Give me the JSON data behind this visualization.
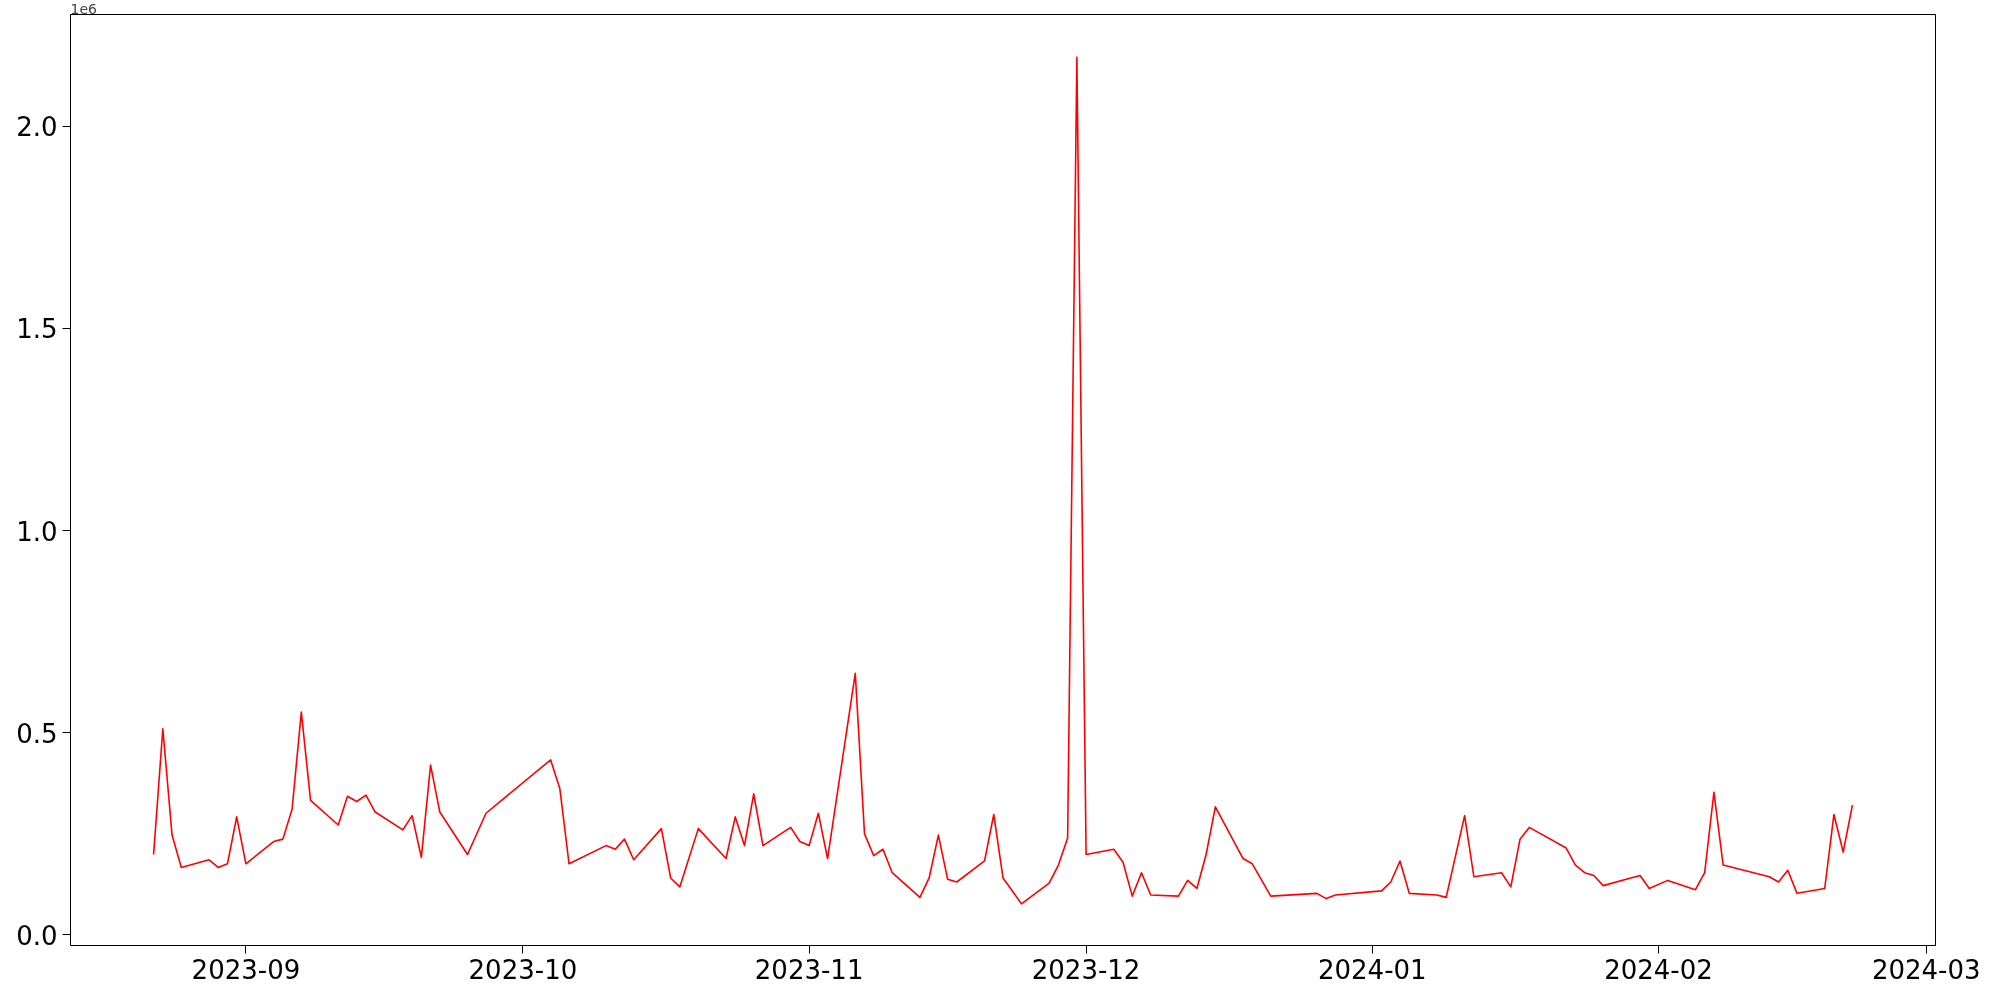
{
  "chart_data": {
    "type": "line",
    "x": [
      "2023-08-22",
      "2023-08-23",
      "2023-08-24",
      "2023-08-25",
      "2023-08-28",
      "2023-08-29",
      "2023-08-30",
      "2023-08-31",
      "2023-09-01",
      "2023-09-04",
      "2023-09-05",
      "2023-09-06",
      "2023-09-07",
      "2023-09-08",
      "2023-09-11",
      "2023-09-12",
      "2023-09-13",
      "2023-09-14",
      "2023-09-15",
      "2023-09-18",
      "2023-09-19",
      "2023-09-20",
      "2023-09-21",
      "2023-09-22",
      "2023-09-25",
      "2023-09-27",
      "2023-10-04",
      "2023-10-05",
      "2023-10-06",
      "2023-10-10",
      "2023-10-11",
      "2023-10-12",
      "2023-10-13",
      "2023-10-16",
      "2023-10-17",
      "2023-10-18",
      "2023-10-20",
      "2023-10-23",
      "2023-10-24",
      "2023-10-25",
      "2023-10-26",
      "2023-10-27",
      "2023-10-30",
      "2023-10-31",
      "2023-11-01",
      "2023-11-02",
      "2023-11-03",
      "2023-11-06",
      "2023-11-07",
      "2023-11-08",
      "2023-11-09",
      "2023-11-10",
      "2023-11-13",
      "2023-11-14",
      "2023-11-15",
      "2023-11-16",
      "2023-11-17",
      "2023-11-20",
      "2023-11-21",
      "2023-11-22",
      "2023-11-24",
      "2023-11-27",
      "2023-11-28",
      "2023-11-29",
      "2023-11-30",
      "2023-12-01",
      "2023-12-04",
      "2023-12-05",
      "2023-12-06",
      "2023-12-07",
      "2023-12-08",
      "2023-12-11",
      "2023-12-12",
      "2023-12-13",
      "2023-12-14",
      "2023-12-15",
      "2023-12-18",
      "2023-12-19",
      "2023-12-21",
      "2023-12-26",
      "2023-12-27",
      "2023-12-28",
      "2024-01-02",
      "2024-01-03",
      "2024-01-04",
      "2024-01-05",
      "2024-01-08",
      "2024-01-09",
      "2024-01-11",
      "2024-01-12",
      "2024-01-15",
      "2024-01-16",
      "2024-01-17",
      "2024-01-18",
      "2024-01-22",
      "2024-01-23",
      "2024-01-24",
      "2024-01-25",
      "2024-01-26",
      "2024-01-29",
      "2024-01-30",
      "2024-01-31",
      "2024-02-02",
      "2024-02-05",
      "2024-02-06",
      "2024-02-07",
      "2024-02-08",
      "2024-02-13",
      "2024-02-14",
      "2024-02-15",
      "2024-02-16",
      "2024-02-19",
      "2024-02-20",
      "2024-02-21",
      "2024-02-22"
    ],
    "series": [
      {
        "color": "#ff0000",
        "values": [
          0.199,
          0.51,
          0.247,
          0.167,
          0.186,
          0.167,
          0.176,
          0.292,
          0.176,
          0.231,
          0.237,
          0.311,
          0.551,
          0.333,
          0.272,
          0.343,
          0.33,
          0.346,
          0.304,
          0.26,
          0.295,
          0.192,
          0.42,
          0.304,
          0.199,
          0.301,
          0.433,
          0.362,
          0.176,
          0.221,
          0.212,
          0.237,
          0.186,
          0.263,
          0.141,
          0.119,
          0.263,
          0.189,
          0.292,
          0.221,
          0.349,
          0.221,
          0.266,
          0.231,
          0.221,
          0.301,
          0.189,
          0.647,
          0.25,
          0.196,
          0.212,
          0.154,
          0.093,
          0.141,
          0.247,
          0.138,
          0.131,
          0.183,
          0.298,
          0.141,
          0.077,
          0.128,
          0.173,
          0.24,
          2.17,
          0.199,
          0.212,
          0.18,
          0.096,
          0.154,
          0.099,
          0.096,
          0.135,
          0.115,
          0.199,
          0.317,
          0.189,
          0.176,
          0.096,
          0.103,
          0.09,
          0.099,
          0.109,
          0.131,
          0.183,
          0.103,
          0.099,
          0.093,
          0.295,
          0.144,
          0.154,
          0.119,
          0.237,
          0.266,
          0.215,
          0.173,
          0.154,
          0.147,
          0.122,
          0.141,
          0.147,
          0.115,
          0.135,
          0.112,
          0.154,
          0.353,
          0.173,
          0.144,
          0.131,
          0.16,
          0.103,
          0.115,
          0.298,
          0.205,
          0.321
        ]
      }
    ],
    "xlim": [
      "2023-08-13",
      "2024-03-02"
    ],
    "xticks": [
      {
        "value": "2023-09-01",
        "label": "2023-09"
      },
      {
        "value": "2023-10-01",
        "label": "2023-10"
      },
      {
        "value": "2023-11-01",
        "label": "2023-11"
      },
      {
        "value": "2023-12-01",
        "label": "2023-12"
      },
      {
        "value": "2024-01-01",
        "label": "2024-01"
      },
      {
        "value": "2024-02-01",
        "label": "2024-02"
      },
      {
        "value": "2024-03-01",
        "label": "2024-03"
      }
    ],
    "ylim": [
      -0.026,
      2.276
    ],
    "yticks": [
      {
        "value": 0,
        "label": "0.0"
      },
      0.5,
      {
        "value": 1,
        "label": "1.0"
      },
      1.5,
      {
        "value": 2,
        "label": "2.0"
      }
    ],
    "annotations": [
      "1e6"
    ],
    "grid": false
  }
}
